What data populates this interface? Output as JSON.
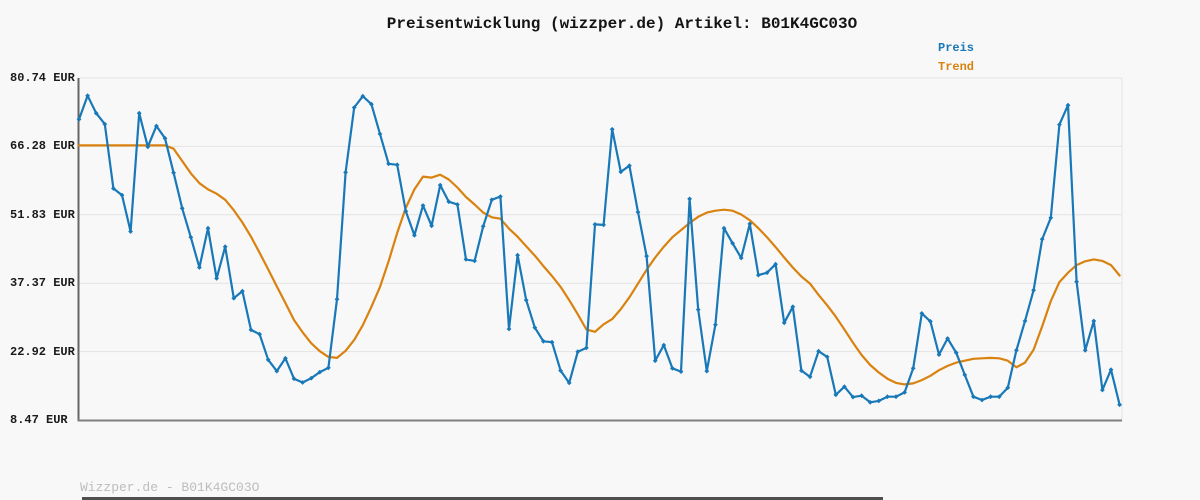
{
  "page": {
    "title": "Preisentwicklung (wizzper.de) Artikel: B01K4GC03O",
    "footer": "Wizzper.de - B01K4GC03O"
  },
  "colors": {
    "preis": "#1878b8",
    "trend": "#d9820f",
    "grid": "#e3e3e3",
    "axis_left": "#666666",
    "axis_bottom": "#7f7f7f",
    "background": "#f8f8f8",
    "title_text": "#141414",
    "tick_text": "#1a1a1a",
    "footer_text": "#bdbdbd",
    "bottom_bar": "#4f4f4f"
  },
  "legend": {
    "position": "top-right",
    "items": [
      {
        "label": "Preis",
        "color": "#1878b8"
      },
      {
        "label": "Trend",
        "color": "#d9820f"
      }
    ]
  },
  "chart_data": {
    "type": "line",
    "title": "Preisentwicklung (wizzper.de) Artikel: B01K4GC03O",
    "xlabel": "",
    "ylabel": "EUR",
    "ylim": [
      8.47,
      80.74
    ],
    "grid": "horizontal",
    "legend_position": "top-right",
    "yticks": [
      {
        "value": 80.74,
        "label": "80.74 EUR"
      },
      {
        "value": 66.28,
        "label": "66.28 EUR"
      },
      {
        "value": 51.83,
        "label": "51.83 EUR"
      },
      {
        "value": 37.37,
        "label": "37.37 EUR"
      },
      {
        "value": 22.92,
        "label": "22.92 EUR"
      },
      {
        "value": 8.47,
        "label": "8.47 EUR"
      }
    ],
    "series": [
      {
        "name": "Preis",
        "color": "#1878b8",
        "markers": true,
        "values": [
          72.0,
          77.0,
          73.3,
          71.0,
          57.4,
          56.0,
          48.3,
          73.3,
          66.2,
          70.6,
          68.0,
          60.7,
          53.2,
          47.1,
          40.7,
          49.0,
          38.4,
          45.1,
          34.2,
          35.7,
          27.5,
          26.6,
          21.2,
          18.8,
          21.5,
          17.2,
          16.4,
          17.3,
          18.6,
          19.5,
          34.0,
          60.8,
          74.5,
          76.9,
          75.2,
          68.9,
          62.6,
          62.4,
          52.6,
          47.5,
          53.8,
          49.5,
          58.1,
          54.6,
          54.0,
          42.4,
          42.1,
          49.4,
          55.0,
          55.7,
          27.7,
          43.3,
          33.8,
          28.0,
          25.1,
          24.9,
          18.9,
          16.3,
          22.9,
          23.7,
          49.8,
          49.7,
          69.9,
          60.9,
          62.2,
          52.4,
          43.1,
          21.0,
          24.3,
          19.4,
          18.7,
          55.2,
          31.8,
          18.8,
          28.6,
          49.0,
          45.8,
          42.7,
          49.9,
          39.1,
          39.6,
          41.4,
          29.0,
          32.4,
          18.9,
          17.6,
          23.0,
          21.8,
          13.8,
          15.5,
          13.3,
          13.6,
          12.2,
          12.5,
          13.4,
          13.4,
          14.3,
          19.4,
          31.0,
          29.3,
          22.3,
          25.7,
          22.7,
          18.0,
          13.4,
          12.7,
          13.4,
          13.4,
          15.3,
          23.2,
          29.4,
          35.9,
          46.7,
          51.2,
          70.9,
          75.0,
          37.7,
          23.2,
          29.4,
          14.8,
          19.1,
          11.7
        ]
      },
      {
        "name": "Trend",
        "color": "#d9820f",
        "markers": false,
        "values": [
          66.5,
          66.5,
          66.5,
          66.5,
          66.5,
          66.5,
          66.5,
          66.5,
          66.5,
          66.5,
          66.5,
          65.8,
          63.2,
          60.6,
          58.5,
          57.2,
          56.3,
          55.0,
          52.8,
          50.2,
          47.2,
          43.8,
          40.3,
          36.7,
          33.2,
          29.6,
          27.0,
          24.7,
          23.0,
          21.8,
          21.6,
          23.1,
          25.4,
          28.5,
          32.4,
          36.6,
          42.0,
          48.0,
          53.3,
          57.2,
          59.9,
          59.7,
          60.3,
          59.3,
          57.6,
          55.6,
          54.0,
          52.3,
          51.3,
          51.0,
          48.9,
          47.2,
          45.2,
          43.2,
          41.0,
          38.9,
          36.6,
          33.8,
          30.8,
          27.6,
          27.1,
          28.7,
          29.8,
          31.9,
          34.4,
          37.3,
          40.2,
          42.8,
          45.1,
          47.1,
          48.6,
          50.1,
          51.4,
          52.3,
          52.7,
          52.9,
          52.7,
          51.9,
          50.7,
          49.0,
          47.1,
          45.0,
          42.8,
          40.7,
          38.8,
          37.3,
          34.9,
          32.7,
          30.3,
          27.6,
          24.8,
          22.2,
          20.1,
          18.5,
          17.2,
          16.3,
          16.0,
          16.2,
          16.9,
          17.8,
          19.0,
          19.9,
          20.6,
          21.0,
          21.4,
          21.5,
          21.6,
          21.5,
          21.0,
          19.6,
          20.6,
          23.3,
          28.3,
          33.6,
          37.6,
          39.6,
          41.2,
          42.0,
          42.4,
          42.1,
          41.2,
          39.0
        ]
      }
    ]
  }
}
